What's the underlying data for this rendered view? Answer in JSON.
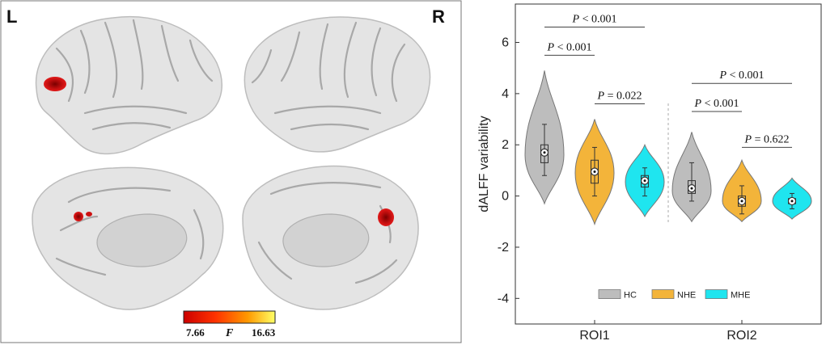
{
  "brain_panel": {
    "left_label": "L",
    "right_label": "R",
    "colorbar": {
      "min_label": "7.66",
      "max_label": "16.63",
      "var_label": "F",
      "colors": [
        "#cc0000",
        "#ff3300",
        "#ff9900",
        "#ffff66"
      ]
    },
    "surface_color": "#e6e6e6",
    "activation_color": "#cc1111"
  },
  "chart_data": {
    "type": "violin",
    "ylabel": "dALFF variability",
    "ylim": [
      -5,
      7.5
    ],
    "yticks": [
      -4,
      -2,
      0,
      2,
      4,
      6
    ],
    "categories": [
      "ROI1",
      "ROI2"
    ],
    "legend": {
      "position": "bottom",
      "entries": [
        "HC",
        "NHE",
        "MHE"
      ]
    },
    "series": [
      {
        "name": "HC",
        "color": "#bdbdbd",
        "groups": [
          {
            "category": "ROI1",
            "min": -0.3,
            "max": 4.9,
            "q1": 1.3,
            "median": 1.7,
            "q3": 2.0,
            "whisker_low": 0.8,
            "whisker_high": 2.8,
            "peak": 1.6
          },
          {
            "category": "ROI2",
            "min": -1.0,
            "max": 2.5,
            "q1": 0.1,
            "median": 0.3,
            "q3": 0.6,
            "whisker_low": -0.2,
            "whisker_high": 1.3,
            "peak": 0.2
          }
        ]
      },
      {
        "name": "NHE",
        "color": "#f3b43a",
        "groups": [
          {
            "category": "ROI1",
            "min": -1.1,
            "max": 3.0,
            "q1": 0.5,
            "median": 0.95,
            "q3": 1.4,
            "whisker_low": 0.0,
            "whisker_high": 1.9,
            "peak": 0.9
          },
          {
            "category": "ROI2",
            "min": -1.0,
            "max": 1.4,
            "q1": -0.4,
            "median": -0.2,
            "q3": 0.0,
            "whisker_low": -0.7,
            "whisker_high": 0.4,
            "peak": -0.2
          }
        ]
      },
      {
        "name": "MHE",
        "color": "#1fe5ef",
        "groups": [
          {
            "category": "ROI1",
            "min": -0.8,
            "max": 2.0,
            "q1": 0.35,
            "median": 0.6,
            "q3": 0.8,
            "whisker_low": 0.0,
            "whisker_high": 1.1,
            "peak": 0.55
          },
          {
            "category": "ROI2",
            "min": -0.9,
            "max": 0.7,
            "q1": -0.3,
            "median": -0.2,
            "q3": -0.1,
            "whisker_low": -0.5,
            "whisker_high": 0.1,
            "peak": -0.2
          }
        ]
      }
    ],
    "annotations": [
      {
        "category": "ROI1",
        "from": "HC",
        "to": "MHE",
        "y": 6.6,
        "p_symbol": "P",
        "p_text": " < 0.001"
      },
      {
        "category": "ROI1",
        "from": "HC",
        "to": "NHE",
        "y": 5.5,
        "p_symbol": "P",
        "p_text": " < 0.001"
      },
      {
        "category": "ROI1",
        "from": "NHE",
        "to": "MHE",
        "y": 3.6,
        "p_symbol": "P",
        "p_text": " = 0.022"
      },
      {
        "category": "ROI2",
        "from": "HC",
        "to": "MHE",
        "y": 4.4,
        "p_symbol": "P",
        "p_text": " < 0.001"
      },
      {
        "category": "ROI2",
        "from": "HC",
        "to": "NHE",
        "y": 3.3,
        "p_symbol": "P",
        "p_text": " < 0.001"
      },
      {
        "category": "ROI2",
        "from": "NHE",
        "to": "MHE",
        "y": 1.9,
        "p_symbol": "P",
        "p_text": " = 0.622"
      }
    ]
  }
}
